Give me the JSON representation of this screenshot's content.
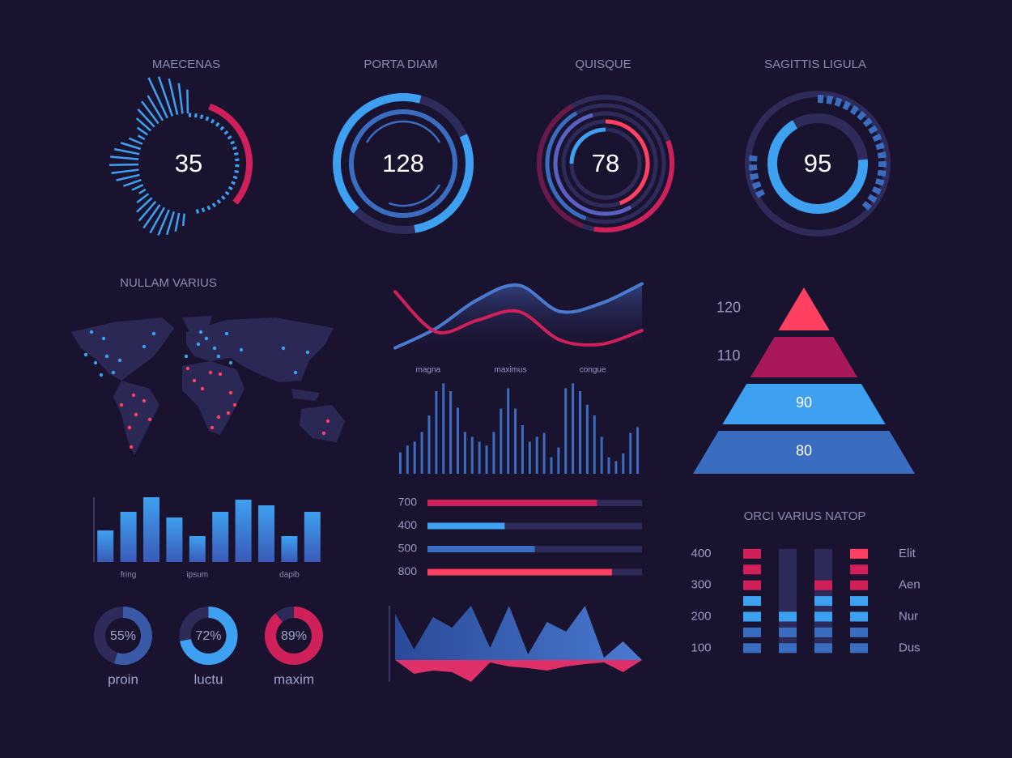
{
  "chart_data": [
    {
      "type": "gauge",
      "title": "MAECENAS",
      "value": 35,
      "color": "#3ea0f0"
    },
    {
      "type": "gauge",
      "title": "PORTA DIAM",
      "value": 128,
      "color": "#3ea0f0"
    },
    {
      "type": "gauge",
      "title": "QUISQUE",
      "value": 78,
      "color": "#e0306a"
    },
    {
      "type": "gauge",
      "title": "SAGITTIS LIGULA",
      "value": 95,
      "color": "#3ea0f0"
    },
    {
      "type": "map",
      "title": "NULLAM VARIUS"
    },
    {
      "type": "line",
      "categories": [
        null,
        "magna",
        null,
        "maximus",
        null,
        "congue",
        null
      ],
      "ylim": [
        0,
        100
      ],
      "series": [
        {
          "color": "#4a7ad0",
          "values": [
            6,
            33,
            72,
            92,
            56,
            67,
            94
          ]
        },
        {
          "color": "#d0205a",
          "values": [
            83,
            28,
            44,
            56,
            17,
            11,
            30
          ]
        }
      ]
    },
    {
      "type": "bar",
      "ylim": [
        0,
        100
      ],
      "color": "#3a6cc0",
      "values": [
        22,
        29,
        33,
        43,
        60,
        85,
        93,
        85,
        68,
        43,
        38,
        33,
        29,
        43,
        67,
        88,
        67,
        50,
        33,
        38,
        42,
        17,
        27,
        88,
        93,
        85,
        71,
        60,
        38,
        17,
        13,
        21,
        42,
        48
      ]
    },
    {
      "type": "hbar",
      "categories": [
        "700",
        "400",
        "500",
        "800"
      ],
      "xlim": [
        0,
        100
      ],
      "values": [
        79,
        36,
        50,
        86
      ],
      "colors": [
        "#d0205a",
        "#3ea0f0",
        "#3a6cc0",
        "#ff4060"
      ]
    },
    {
      "type": "area",
      "ylim": [
        -40,
        80
      ],
      "series": [
        {
          "color": "#3a6cc0",
          "values": [
            57,
            13,
            53,
            40,
            67,
            15,
            67,
            7,
            47,
            35,
            67,
            3,
            23,
            0
          ]
        },
        {
          "color": "#e0306a",
          "values": [
            0,
            -17,
            -13,
            -15,
            -27,
            -3,
            -8,
            -10,
            -13,
            -8,
            -5,
            -3,
            -15,
            0
          ]
        }
      ]
    },
    {
      "type": "bar",
      "ylim": [
        0,
        100
      ],
      "color": "#3ea0f0",
      "categories": [
        null,
        "fring",
        null,
        null,
        "ipsum",
        null,
        null,
        null,
        "dapib",
        null
      ],
      "values": [
        39,
        62,
        80,
        55,
        32,
        62,
        77,
        70,
        32,
        62
      ]
    },
    {
      "type": "donut",
      "categories": [
        "proin",
        "luctu",
        "maxim"
      ],
      "values": [
        55,
        72,
        89
      ],
      "value_labels": [
        "55%",
        "72%",
        "89%"
      ],
      "colors": [
        "#3a5aa8",
        "#3ea0f0",
        "#d0205a"
      ]
    },
    {
      "type": "pyramid",
      "values": [
        120,
        110,
        90,
        80
      ],
      "colors": [
        "#ff4060",
        "#a8185a",
        "#3ea0f0",
        "#3a6cc0"
      ]
    },
    {
      "type": "block",
      "title": "ORCI VARIUS NATOP",
      "ylim": [
        75,
        415
      ],
      "yticks": [
        400,
        300,
        200,
        100
      ],
      "row_labels": [
        "Elit",
        "Aen",
        "Nur",
        "Dus"
      ],
      "values": [
        400,
        200,
        300,
        400
      ]
    }
  ]
}
